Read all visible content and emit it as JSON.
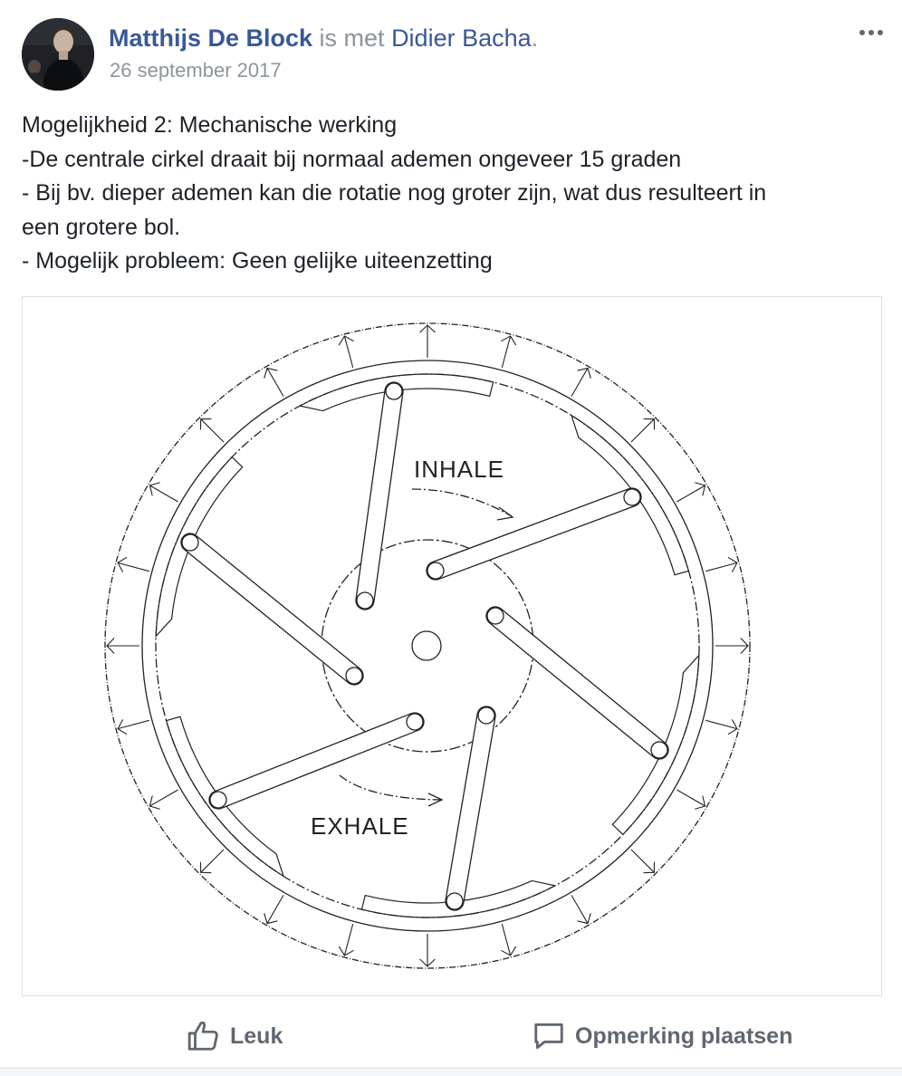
{
  "post": {
    "author": "Matthijs De Block",
    "with_text": " is met ",
    "tagged": "Didier Bacha",
    "tagged_suffix": ".",
    "date": "26 september 2017",
    "more_icon": "more-horizontal-icon",
    "body_lines": [
      "Mogelijkheid 2: Mechanische werking",
      "-De centrale cirkel draait bij normaal ademen ongeveer 15 graden",
      "- Bij bv. dieper ademen kan die rotatie nog groter zijn, wat dus resulteert in",
      "een grotere bol.",
      "- Mogelijk probleem: Geen gelijke uiteenzetting"
    ]
  },
  "diagram": {
    "inhale_label": "INHALE",
    "exhale_label": "EXHALE"
  },
  "actions": {
    "like_label": "Leuk",
    "like_icon": "thumbs-up-icon",
    "comment_label": "Opmerking plaatsen",
    "comment_icon": "comment-bubble-icon"
  },
  "colors": {
    "link": "#385898",
    "meta": "#8d949e",
    "action": "#606770"
  }
}
